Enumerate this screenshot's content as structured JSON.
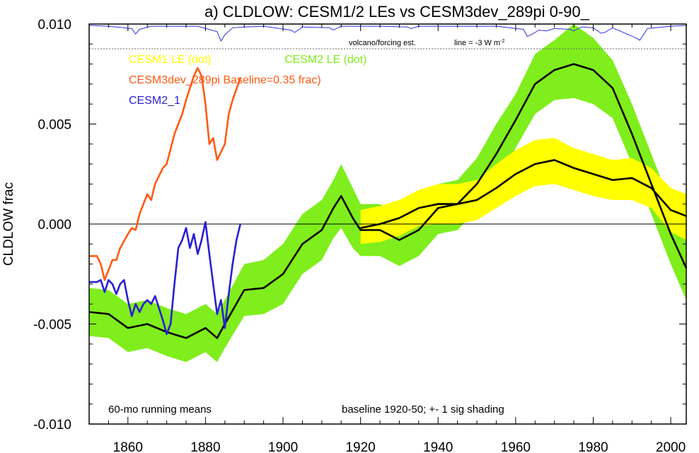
{
  "chart_data": {
    "type": "line",
    "title": "a) CLDLOW: CESM1/2 LEs vs CESM3dev_289pi 0-90_",
    "ylabel": "CLDLOW frac",
    "xlim": [
      1850,
      2004
    ],
    "ylim": [
      -0.01,
      0.01
    ],
    "x_ticks": [
      "1860",
      "1880",
      "1900",
      "1920",
      "1940",
      "1960",
      "1980",
      "2000"
    ],
    "y_ticks": [
      "0.010",
      "0.005",
      "0.000",
      "-0.005",
      "-0.010"
    ],
    "annotations": {
      "volcano": "volcano/forcing est.",
      "volcano_line": "line = -3 W m",
      "volcano_line_sup": "-2",
      "running_means": "60-mo running means",
      "baseline": "baseline 1920-50; +- 1 sig shading"
    },
    "legend": {
      "cesm1": "CESM1 LE (dot)",
      "cesm2": "CESM2 LE (dot)",
      "cesm3": "CESM3dev_289pi Baseline=0.35 frac)",
      "cesm21": "CESM2_1"
    },
    "colors": {
      "cesm1_shade": "#ffff00",
      "cesm2_shade": "#7fee1c",
      "cesm3": "#ff5a14",
      "cesm21": "#2a1fd4",
      "mean": "#000000",
      "volcano": "#3030e0"
    },
    "series": [
      {
        "name": "CESM2 LE (dot)",
        "kind": "band_mean",
        "x": [
          1850,
          1855,
          1860,
          1865,
          1870,
          1875,
          1880,
          1883,
          1885,
          1890,
          1895,
          1900,
          1905,
          1910,
          1913,
          1915,
          1918,
          1920,
          1925,
          1930,
          1935,
          1940,
          1945,
          1950,
          1955,
          1960,
          1965,
          1970,
          1975,
          1980,
          1985,
          1990,
          1995,
          2000,
          2004
        ],
        "mean": [
          -0.0044,
          -0.0045,
          -0.0052,
          -0.005,
          -0.0054,
          -0.0057,
          -0.0052,
          -0.0057,
          -0.005,
          -0.0033,
          -0.0032,
          -0.0025,
          -0.001,
          -0.0003,
          0.0008,
          0.0014,
          0.0003,
          -0.0003,
          -0.0003,
          -0.0008,
          -0.0003,
          0.0008,
          0.001,
          0.002,
          0.0035,
          0.0052,
          0.007,
          0.0077,
          0.008,
          0.0077,
          0.0068,
          0.0045,
          0.002,
          -0.0005,
          -0.0022
        ],
        "upper": [
          -0.0032,
          -0.0033,
          -0.004,
          -0.0038,
          -0.0042,
          -0.0045,
          -0.004,
          -0.0045,
          -0.0038,
          -0.002,
          -0.0018,
          -0.001,
          0.0005,
          0.0012,
          0.0022,
          0.003,
          0.0018,
          0.001,
          0.001,
          0.0005,
          0.001,
          0.002,
          0.0022,
          0.0033,
          0.005,
          0.0065,
          0.0085,
          0.0092,
          0.01,
          0.0093,
          0.0082,
          0.006,
          0.0035,
          0.001,
          -0.0008
        ],
        "lower": [
          -0.0056,
          -0.0057,
          -0.0064,
          -0.0062,
          -0.0066,
          -0.0069,
          -0.0064,
          -0.0069,
          -0.0062,
          -0.0046,
          -0.0045,
          -0.004,
          -0.0025,
          -0.0018,
          -0.0007,
          -0.0002,
          -0.0012,
          -0.0016,
          -0.0016,
          -0.0021,
          -0.0016,
          -0.0005,
          -0.0003,
          0.0007,
          0.002,
          0.0038,
          0.0055,
          0.0062,
          0.0063,
          0.006,
          0.0053,
          0.003,
          0.0005,
          -0.002,
          -0.0038
        ]
      },
      {
        "name": "CESM1 LE (dot)",
        "kind": "band_mean",
        "x": [
          1920,
          1925,
          1930,
          1935,
          1940,
          1945,
          1950,
          1955,
          1960,
          1965,
          1970,
          1975,
          1980,
          1985,
          1990,
          1995,
          2000,
          2004
        ],
        "mean": [
          -0.0002,
          0.0,
          0.0003,
          0.0008,
          0.001,
          0.001,
          0.0012,
          0.0018,
          0.0025,
          0.003,
          0.0032,
          0.0028,
          0.0025,
          0.0022,
          0.0023,
          0.0018,
          0.0007,
          0.0004
        ],
        "upper": [
          0.0007,
          0.0009,
          0.0012,
          0.0017,
          0.002,
          0.002,
          0.0022,
          0.003,
          0.0037,
          0.0042,
          0.0043,
          0.0038,
          0.0035,
          0.0032,
          0.0033,
          0.0028,
          0.0018,
          0.0015
        ],
        "lower": [
          -0.001,
          -0.0009,
          -0.0006,
          -0.0001,
          0.0,
          0.0,
          0.0002,
          0.0008,
          0.0014,
          0.0019,
          0.002,
          0.0017,
          0.0014,
          0.0012,
          0.0012,
          0.0008,
          -0.0004,
          -0.0008
        ]
      },
      {
        "name": "CESM3dev_289pi Baseline=0.35 frac)",
        "kind": "line",
        "x": [
          1850,
          1852,
          1853,
          1854,
          1856,
          1857,
          1858,
          1860,
          1861,
          1862,
          1863,
          1865,
          1866,
          1867,
          1869,
          1870,
          1872,
          1874,
          1875,
          1877,
          1878,
          1879,
          1880,
          1881,
          1882,
          1883,
          1885,
          1886,
          1887,
          1889
        ],
        "values": [
          -0.0016,
          -0.0016,
          -0.002,
          -0.0028,
          -0.0018,
          -0.0018,
          -0.0012,
          -0.0005,
          -0.0002,
          -0.0003,
          0.0005,
          0.0015,
          0.0012,
          0.002,
          0.0028,
          0.003,
          0.0045,
          0.0055,
          0.0062,
          0.0074,
          0.0078,
          0.0074,
          0.006,
          0.004,
          0.0043,
          0.0032,
          0.004,
          0.0055,
          0.0062,
          0.0073
        ]
      },
      {
        "name": "CESM2_1",
        "kind": "line",
        "x": [
          1850,
          1852,
          1853,
          1854,
          1855,
          1856,
          1857,
          1858,
          1859,
          1860,
          1861,
          1862,
          1863,
          1864,
          1865,
          1866,
          1867,
          1868,
          1869,
          1870,
          1871,
          1872,
          1873,
          1874,
          1875,
          1876,
          1877,
          1878,
          1879,
          1880,
          1881,
          1882,
          1883,
          1884,
          1885,
          1886,
          1887,
          1888,
          1889
        ],
        "values": [
          -0.0029,
          -0.0029,
          -0.0028,
          -0.0034,
          -0.0028,
          -0.003,
          -0.0035,
          -0.003,
          -0.0028,
          -0.0038,
          -0.0046,
          -0.004,
          -0.0044,
          -0.004,
          -0.0038,
          -0.004,
          -0.0036,
          -0.0042,
          -0.0048,
          -0.0055,
          -0.005,
          -0.003,
          -0.0012,
          -0.0008,
          -0.0002,
          -0.0012,
          -0.0005,
          -0.0015,
          -0.0008,
          0.0001,
          -0.0015,
          -0.003,
          -0.0045,
          -0.0038,
          -0.0052,
          -0.0035,
          -0.002,
          -0.0008,
          0.0
        ]
      },
      {
        "name": "volcano/forcing est.",
        "kind": "volcano",
        "x": [
          1850,
          1855,
          1861,
          1862,
          1863,
          1866,
          1870,
          1875,
          1878,
          1883,
          1884,
          1885,
          1887,
          1890,
          1895,
          1902,
          1903,
          1905,
          1912,
          1913,
          1915,
          1925,
          1932,
          1933,
          1935,
          1950,
          1955,
          1962,
          1963,
          1964,
          1966,
          1968,
          1970,
          1974,
          1975,
          1977,
          1980,
          1982,
          1983,
          1985,
          1991,
          1992,
          1994,
          2000,
          2004
        ],
        "values": [
          0.0,
          -0.1,
          -0.4,
          -1.1,
          -0.5,
          -0.1,
          -0.1,
          -0.1,
          -0.1,
          -0.8,
          -2.0,
          -1.2,
          -0.3,
          -0.2,
          -0.1,
          -0.6,
          -0.9,
          -0.2,
          -0.3,
          -0.6,
          -0.1,
          -0.1,
          -0.2,
          -0.4,
          -0.1,
          -0.1,
          -0.1,
          -0.5,
          -1.4,
          -1.2,
          -0.6,
          -0.7,
          -0.4,
          -0.5,
          -0.7,
          -0.2,
          -0.3,
          -1.0,
          -0.9,
          -0.3,
          -1.6,
          -1.9,
          -0.4,
          -0.1,
          0.0
        ]
      }
    ]
  }
}
